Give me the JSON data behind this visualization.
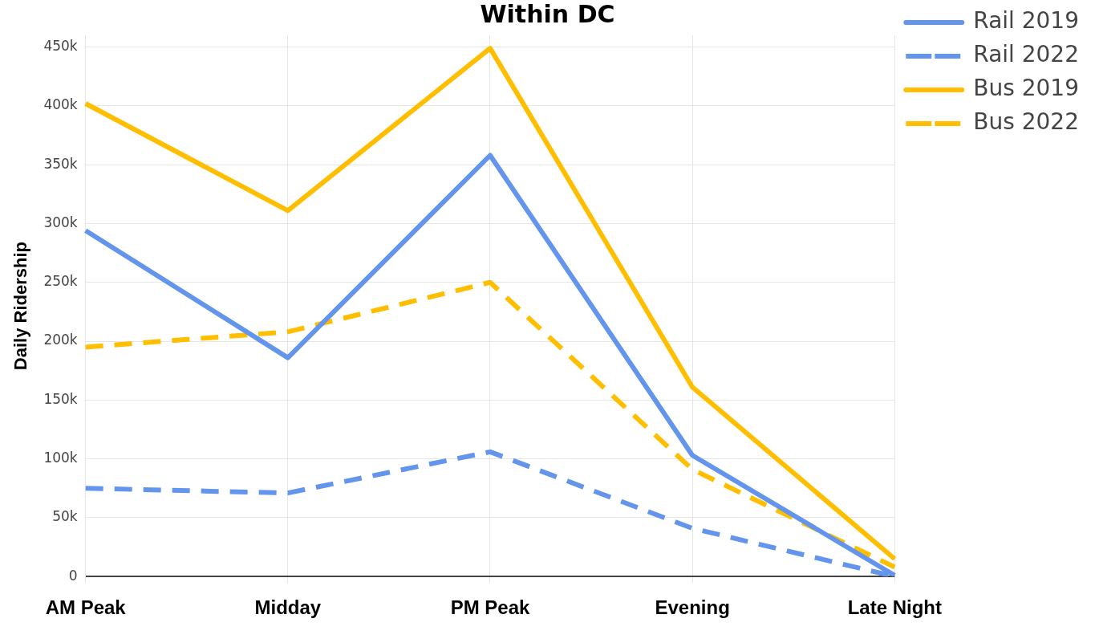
{
  "chart_data": {
    "type": "line",
    "title": "Within DC",
    "ylabel": "Daily Ridership",
    "categories": [
      "AM Peak",
      "Midday",
      "PM Peak",
      "Evening",
      "Late Night"
    ],
    "series": [
      {
        "name": "Rail 2019",
        "color": "#6495ed",
        "line_style": "solid",
        "values": [
          294000,
          186000,
          358000,
          103000,
          1000
        ]
      },
      {
        "name": "Rail 2022",
        "color": "#6495ed",
        "line_style": "dashed",
        "values": [
          75000,
          71000,
          106000,
          41000,
          0
        ]
      },
      {
        "name": "Bus 2019",
        "color": "#ffbf00",
        "line_style": "solid",
        "values": [
          402000,
          311000,
          449000,
          161000,
          15000
        ]
      },
      {
        "name": "Bus 2022",
        "color": "#ffbf00",
        "line_style": "dashed",
        "values": [
          195000,
          208000,
          250000,
          91000,
          8000
        ]
      }
    ],
    "ylim": [
      0,
      460000
    ],
    "yticks": [
      {
        "value": 0,
        "label": "0"
      },
      {
        "value": 50000,
        "label": "50k"
      },
      {
        "value": 100000,
        "label": "100k"
      },
      {
        "value": 150000,
        "label": "150k"
      },
      {
        "value": 200000,
        "label": "200k"
      },
      {
        "value": 250000,
        "label": "250k"
      },
      {
        "value": 300000,
        "label": "300k"
      },
      {
        "value": 350000,
        "label": "350k"
      },
      {
        "value": 400000,
        "label": "400k"
      },
      {
        "value": 450000,
        "label": "450k"
      }
    ],
    "grid": true,
    "legend": "top right",
    "marker": "none"
  }
}
